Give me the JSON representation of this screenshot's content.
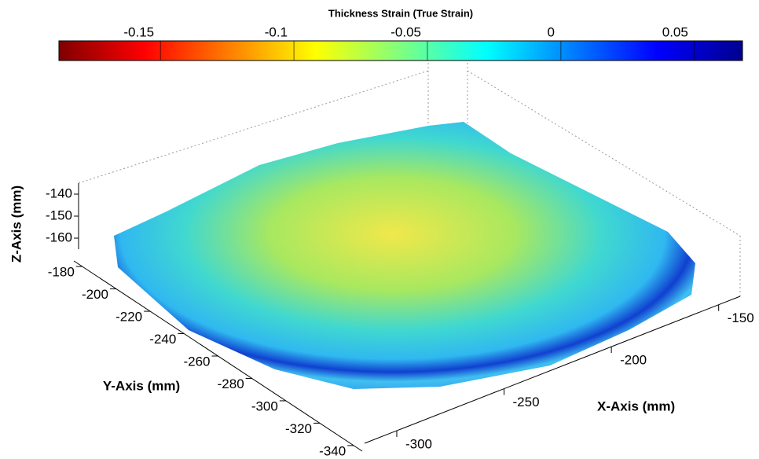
{
  "chart_data": {
    "type": "surface3d",
    "title": "Thickness Strain (True Strain)",
    "colorbar": {
      "clim": [
        -0.188,
        0.068
      ],
      "ticks": [
        -0.15,
        -0.1,
        -0.05,
        0,
        0.05
      ],
      "colormap": [
        "#7f0000",
        "#ff0000",
        "#ff7f00",
        "#ffff00",
        "#7fff7f",
        "#00ffff",
        "#007fff",
        "#0000ff",
        "#00008f"
      ]
    },
    "xlabel": "X-Axis (mm)",
    "ylabel": "Y-Axis (mm)",
    "zlabel": "Z-Axis (mm)",
    "xlim": [
      -315,
      -140
    ],
    "xticks": [
      -300,
      -250,
      -200,
      -150
    ],
    "ylim": [
      -345,
      -175
    ],
    "yticks": [
      -340,
      -320,
      -300,
      -280,
      -260,
      -240,
      -220,
      -200,
      -180
    ],
    "zlim": [
      -165,
      -135
    ],
    "zticks": [
      -160,
      -150,
      -140
    ]
  }
}
